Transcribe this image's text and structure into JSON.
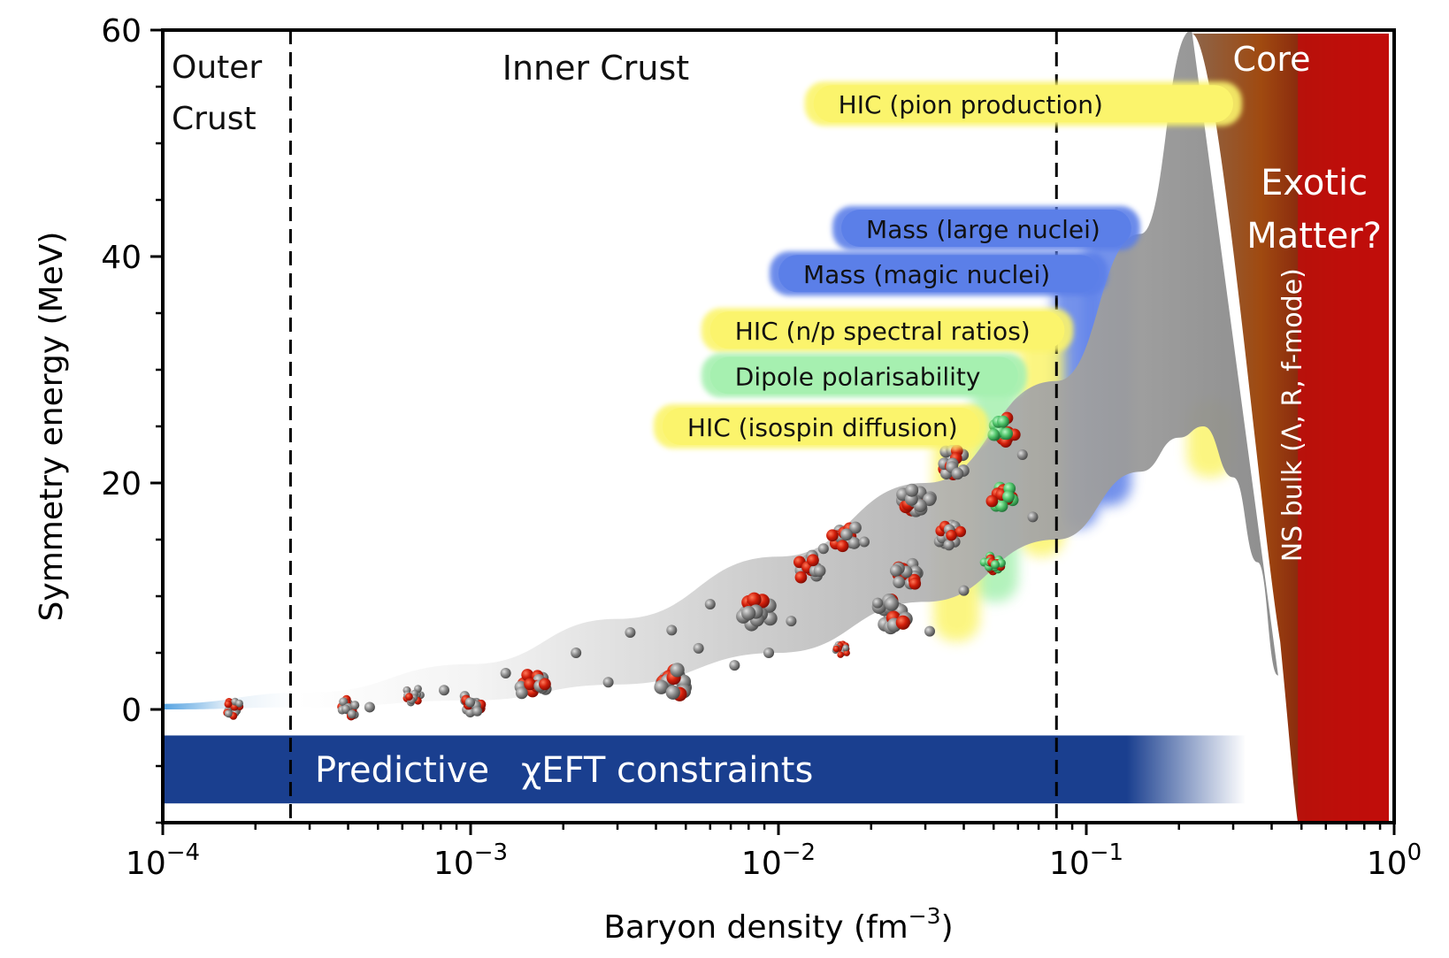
{
  "chart_data": {
    "type": "area",
    "title": "",
    "xlabel": "Baryon density (fm",
    "xlabel_sup": "−3",
    "xlabel_close": ")",
    "ylabel": "Symmetry energy (MeV)",
    "x_scale": "log",
    "xlim": [
      0.0001,
      1
    ],
    "ylim": [
      -10,
      60
    ],
    "x_ticks": [
      {
        "base": "10",
        "exp": "−4"
      },
      {
        "base": "10",
        "exp": "−3"
      },
      {
        "base": "10",
        "exp": "−2"
      },
      {
        "base": "10",
        "exp": "−1"
      },
      {
        "base": "10",
        "exp": "0"
      }
    ],
    "y_ticks": [
      "0",
      "20",
      "40",
      "60"
    ],
    "y_tick_values": [
      0,
      20,
      40,
      60
    ],
    "boundaries": [
      {
        "name": "outer-inner-crust",
        "x": 0.00026
      },
      {
        "name": "inner-crust-core",
        "x": 0.08
      }
    ],
    "regions": [
      {
        "name": "outer-crust",
        "lines": [
          "Outer",
          "Crust"
        ]
      },
      {
        "name": "inner-crust",
        "lines": [
          "Inner Crust"
        ]
      },
      {
        "name": "core",
        "lines": [
          "Core"
        ]
      },
      {
        "name": "exotic-matter",
        "lines": [
          "Exotic",
          "Matter?"
        ]
      }
    ],
    "band_upper": [
      [
        0.0001,
        0.5
      ],
      [
        0.0003,
        1.5
      ],
      [
        0.001,
        4
      ],
      [
        0.003,
        8
      ],
      [
        0.01,
        13.5
      ],
      [
        0.03,
        20
      ],
      [
        0.08,
        29
      ],
      [
        0.15,
        42
      ],
      [
        0.22,
        60
      ]
    ],
    "band_lower": [
      [
        0.0001,
        0
      ],
      [
        0.0003,
        0.2
      ],
      [
        0.001,
        0.8
      ],
      [
        0.003,
        2.2
      ],
      [
        0.01,
        5
      ],
      [
        0.03,
        9.5
      ],
      [
        0.08,
        15
      ],
      [
        0.15,
        21
      ],
      [
        0.2,
        24
      ],
      [
        0.24,
        25
      ],
      [
        0.3,
        20.5
      ],
      [
        0.36,
        13
      ],
      [
        0.42,
        3
      ]
    ],
    "constraints": [
      {
        "label": "HIC (pion production)",
        "kind": "hic",
        "x_start": 0.013,
        "x_end": 0.3,
        "y": 53.5,
        "y_low": 53.5
      },
      {
        "label": "Mass (large nuclei)",
        "kind": "mass",
        "x_start": 0.016,
        "x_end": 0.14,
        "y": 42.5,
        "y_low": 18
      },
      {
        "label": "Mass (magic nuclei)",
        "kind": "mass",
        "x_start": 0.01,
        "x_end": 0.11,
        "y": 38.5,
        "y_low": 16
      },
      {
        "label": "HIC (n/p spectral ratios)",
        "kind": "hic",
        "x_start": 0.006,
        "x_end": 0.085,
        "y": 33.5,
        "y_low": 13.5
      },
      {
        "label": "Dipole polarisability",
        "kind": "dipole",
        "x_start": 0.006,
        "x_end": 0.06,
        "y": 29.5,
        "y_low": 9.5
      },
      {
        "label": "HIC (isospin diffusion)",
        "kind": "hic",
        "x_start": 0.0042,
        "x_end": 0.045,
        "y": 25,
        "y_low": 6
      }
    ],
    "extra_glows": [
      {
        "kind": "hic",
        "x_start": 0.18,
        "x_end": 0.3,
        "y_high": 27,
        "y_low": 20.5
      }
    ],
    "predictive_band": {
      "label_word": "Predictive",
      "label_rest": "χEFT constraints",
      "x_start": 0.0001,
      "x_end": 0.33,
      "y_top": -2.3,
      "y_bottom": -8.3
    },
    "ns_bulk": {
      "label": "NS bulk (Λ, R, f-mode)",
      "x_left": 0.22,
      "x_right": 1
    },
    "colors": {
      "hic": "#fbf46c",
      "mass": "#5b7fe8",
      "dipole": "#a6f0b0",
      "predictive": "#1a3f8f",
      "core_red": "#c00d0a",
      "core_brown": "#8a2a0e",
      "band_gray": "#9a9a9a",
      "band_blue": "#4a9de0",
      "nucleus_red": "#d21f0b",
      "nucleus_gray": "#8c8c8c"
    }
  }
}
